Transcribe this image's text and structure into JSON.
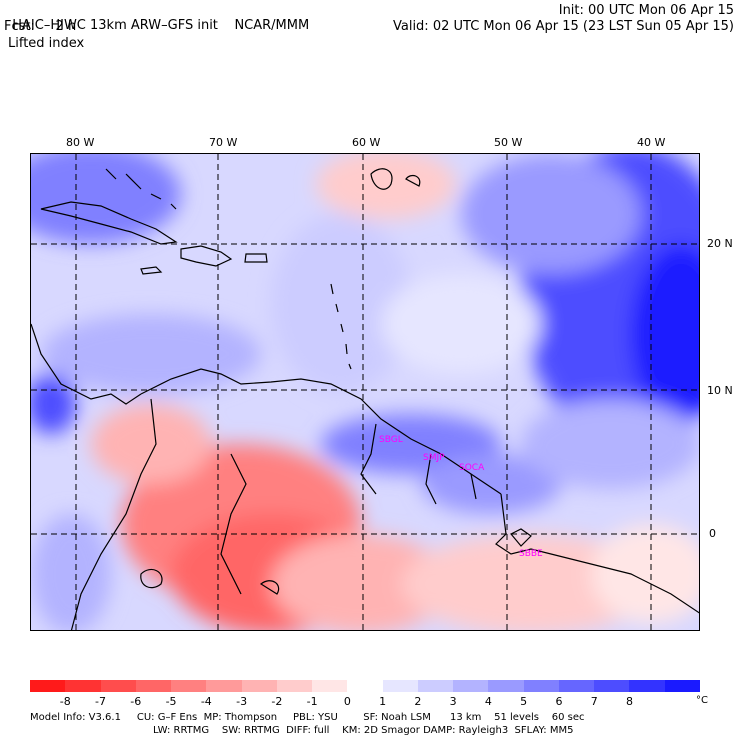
{
  "header": {
    "title": "HAIC–HIWC 13km ARW–GFS init",
    "org": "NCAR/MMM",
    "fcst": "Fcst:     2 h",
    "variable": "Lifted index",
    "init": "Init: 00 UTC Mon 06 Apr 15",
    "valid": "Valid: 02 UTC Mon 06 Apr 15 (23 LST Sun 05 Apr 15)"
  },
  "map": {
    "lon_labels": [
      "80 W",
      "70 W",
      "60 W",
      "50 W",
      "40 W"
    ],
    "lat_labels": [
      "20 N",
      "10 N",
      "0"
    ],
    "station_labels": [
      "SBGL",
      "SMJP",
      "SOCA",
      "SBBE"
    ],
    "colors": {
      "land_outline": "#000000",
      "grid": "#000000",
      "station": "#ff00ff"
    }
  },
  "colorbar": {
    "unit": "°C",
    "ticks": [
      "-8",
      "-7",
      "-6",
      "-5",
      "-4",
      "-3",
      "-2",
      "-1",
      "0",
      "1",
      "2",
      "3",
      "4",
      "5",
      "6",
      "7",
      "8"
    ],
    "colors": [
      "#ff1a1a",
      "#ff3333",
      "#ff4d4d",
      "#ff6666",
      "#ff8080",
      "#ff9a9a",
      "#ffb3b3",
      "#ffcccc",
      "#ffe6e6",
      "#ffffff",
      "#e6e6ff",
      "#ccccff",
      "#b3b3ff",
      "#9a9aff",
      "#8080ff",
      "#6666ff",
      "#4d4dff",
      "#3333ff",
      "#1a1aff"
    ]
  },
  "footer": {
    "line1": "Model Info: V3.6.1     CU: G–F Ens  MP: Thompson     PBL: YSU        SF: Noah LSM      13 km    51 levels    60 sec",
    "line2": "LW: RRTMG    SW: RRTMG  DIFF: full    KM: 2D Smagor DAMP: Rayleigh3  SFLAY: MM5"
  }
}
